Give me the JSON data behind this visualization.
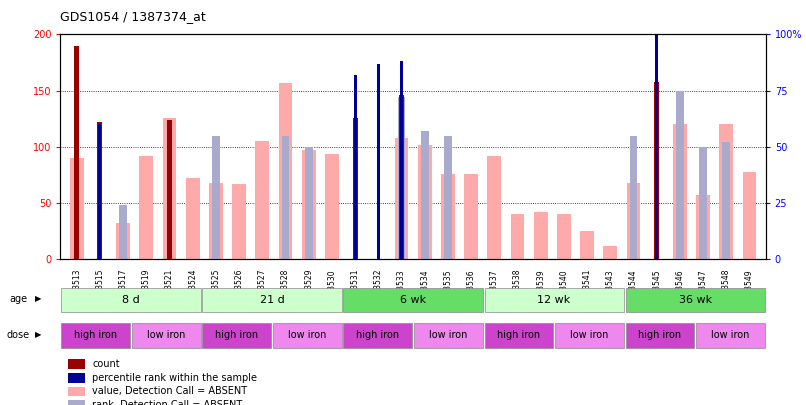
{
  "title": "GDS1054 / 1387374_at",
  "samples": [
    "GSM33513",
    "GSM33515",
    "GSM33517",
    "GSM33519",
    "GSM33521",
    "GSM33524",
    "GSM33525",
    "GSM33526",
    "GSM33527",
    "GSM33528",
    "GSM33529",
    "GSM33530",
    "GSM33531",
    "GSM33532",
    "GSM33533",
    "GSM33534",
    "GSM33535",
    "GSM33536",
    "GSM33537",
    "GSM33538",
    "GSM33539",
    "GSM33540",
    "GSM33541",
    "GSM33543",
    "GSM33544",
    "GSM33545",
    "GSM33546",
    "GSM33547",
    "GSM33548",
    "GSM33549"
  ],
  "count_values": [
    190,
    122,
    0,
    0,
    124,
    0,
    0,
    0,
    0,
    0,
    0,
    0,
    126,
    0,
    146,
    0,
    0,
    0,
    0,
    0,
    0,
    0,
    0,
    0,
    0,
    158,
    0,
    0,
    0,
    0
  ],
  "rank_values": [
    0,
    60,
    0,
    0,
    0,
    0,
    0,
    0,
    0,
    0,
    0,
    0,
    82,
    87,
    88,
    0,
    0,
    0,
    0,
    0,
    0,
    0,
    0,
    0,
    0,
    100,
    0,
    0,
    0,
    0
  ],
  "pink_values": [
    90,
    0,
    32,
    92,
    126,
    72,
    68,
    67,
    105,
    157,
    97,
    94,
    0,
    0,
    108,
    102,
    76,
    76,
    92,
    40,
    42,
    40,
    25,
    12,
    68,
    0,
    120,
    57,
    120,
    78
  ],
  "blue_values": [
    0,
    0,
    24,
    0,
    0,
    0,
    55,
    0,
    0,
    55,
    50,
    0,
    0,
    0,
    72,
    57,
    55,
    0,
    0,
    0,
    0,
    0,
    0,
    0,
    55,
    0,
    75,
    50,
    52,
    0
  ],
  "age_groups": [
    {
      "label": "8 d",
      "start": 0,
      "end": 6,
      "color": "#ccffcc"
    },
    {
      "label": "21 d",
      "start": 6,
      "end": 12,
      "color": "#ccffcc"
    },
    {
      "label": "6 wk",
      "start": 12,
      "end": 18,
      "color": "#66dd66"
    },
    {
      "label": "12 wk",
      "start": 18,
      "end": 24,
      "color": "#ccffcc"
    },
    {
      "label": "36 wk",
      "start": 24,
      "end": 30,
      "color": "#66dd66"
    }
  ],
  "dose_groups": [
    {
      "label": "high iron",
      "start": 0,
      "end": 3,
      "color": "#cc44cc"
    },
    {
      "label": "low iron",
      "start": 3,
      "end": 6,
      "color": "#ee88ee"
    },
    {
      "label": "high iron",
      "start": 6,
      "end": 9,
      "color": "#cc44cc"
    },
    {
      "label": "low iron",
      "start": 9,
      "end": 12,
      "color": "#ee88ee"
    },
    {
      "label": "high iron",
      "start": 12,
      "end": 15,
      "color": "#cc44cc"
    },
    {
      "label": "low iron",
      "start": 15,
      "end": 18,
      "color": "#ee88ee"
    },
    {
      "label": "high iron",
      "start": 18,
      "end": 21,
      "color": "#cc44cc"
    },
    {
      "label": "low iron",
      "start": 21,
      "end": 24,
      "color": "#ee88ee"
    },
    {
      "label": "high iron",
      "start": 24,
      "end": 27,
      "color": "#cc44cc"
    },
    {
      "label": "low iron",
      "start": 27,
      "end": 30,
      "color": "#ee88ee"
    }
  ],
  "ylim": [
    0,
    200
  ],
  "right_ylim": [
    0,
    100
  ],
  "right_yticks": [
    0,
    25,
    50,
    75,
    100
  ],
  "right_yticklabels": [
    "0",
    "25",
    "50",
    "75",
    "100%"
  ],
  "left_yticks": [
    0,
    50,
    100,
    150,
    200
  ],
  "bar_color_count": "#990000",
  "bar_color_rank": "#000099",
  "bar_color_pink": "#ffaaaa",
  "bar_color_blue": "#aaaacc",
  "bar_width": 0.6,
  "legend_items": [
    {
      "color": "#990000",
      "label": "count"
    },
    {
      "color": "#000099",
      "label": "percentile rank within the sample"
    },
    {
      "color": "#ffaaaa",
      "label": "value, Detection Call = ABSENT"
    },
    {
      "color": "#aaaacc",
      "label": "rank, Detection Call = ABSENT"
    }
  ]
}
